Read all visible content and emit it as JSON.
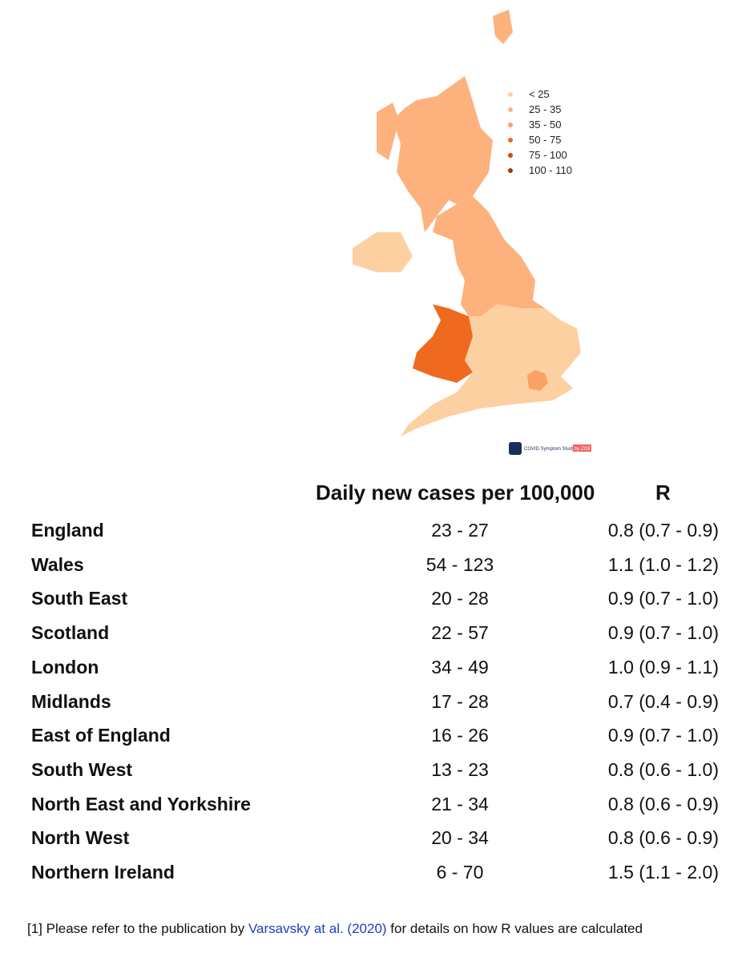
{
  "map": {
    "legend": [
      {
        "label": "< 25",
        "color": "#fdd0a2"
      },
      {
        "label": "25 - 35",
        "color": "#fdb27e"
      },
      {
        "label": "35 - 50",
        "color": "#f9a264"
      },
      {
        "label": "50 - 75",
        "color": "#ef6a1e"
      },
      {
        "label": "75 - 100",
        "color": "#d94801"
      },
      {
        "label": "100 - 110",
        "color": "#a63603"
      }
    ],
    "logo_text": "COVID Symptom Study",
    "logo_badge": "by ZOE"
  },
  "table": {
    "header": [
      "Daily new cases per 100,000",
      "R"
    ],
    "rows": [
      [
        "England",
        "23 - 27",
        "0.8 (0.7 - 0.9)"
      ],
      [
        "Wales",
        "54 - 123",
        "1.1 (1.0 - 1.2)"
      ],
      [
        "South East",
        "20 - 28",
        "0.9 (0.7 - 1.0)"
      ],
      [
        "Scotland",
        "22 - 57",
        "0.9 (0.7 - 1.0)"
      ],
      [
        "London",
        "34 - 49",
        "1.0 (0.9 - 1.1)"
      ],
      [
        "Midlands",
        "17 - 28",
        "0.7 (0.4 - 0.9)"
      ],
      [
        "East of England",
        "16 - 26",
        "0.9 (0.7 - 1.0)"
      ],
      [
        "South West",
        "13 - 23",
        "0.8 (0.6 - 1.0)"
      ],
      [
        "North East and Yorkshire",
        "21 - 34",
        "0.8 (0.6 - 0.9)"
      ],
      [
        "North West",
        "20 - 34",
        "0.8 (0.6 - 0.9)"
      ],
      [
        "Northern Ireland",
        "6 - 70",
        "1.5 (1.1 - 2.0)"
      ]
    ]
  },
  "footnote": {
    "before": "[1] Please refer to the publication by",
    "link": "Varsavsky at al. (2020)",
    "after": "for details on how R values are calculated"
  }
}
